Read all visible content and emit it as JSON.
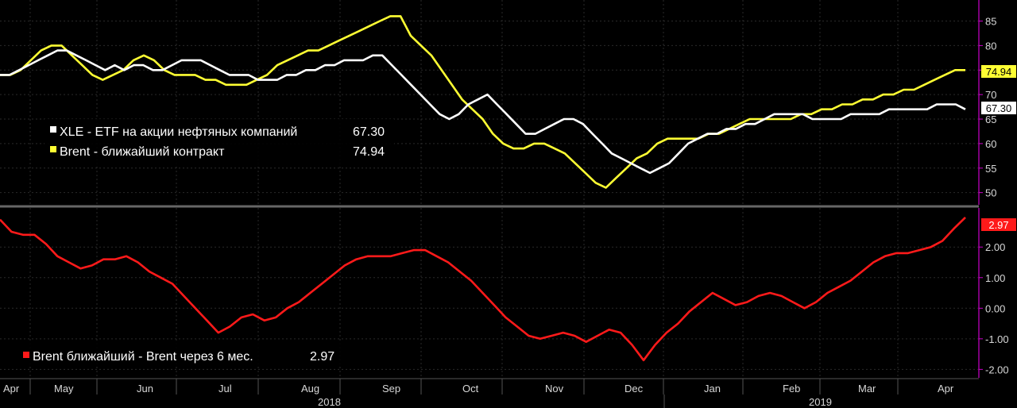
{
  "chart_data": [
    {
      "type": "line",
      "panel": "top",
      "x_labels": [
        "Apr",
        "May",
        "Jun",
        "Jul",
        "Aug",
        "Sep",
        "Oct",
        "Nov",
        "Dec",
        "Jan",
        "Feb",
        "Mar",
        "Apr"
      ],
      "years": [
        "2018",
        "2019"
      ],
      "yticks": [
        50,
        55,
        60,
        65,
        70,
        75,
        80,
        85
      ],
      "ylim": [
        48,
        88
      ],
      "grid": true,
      "legend_position": "left",
      "series": [
        {
          "name": "XLE - ETF на акции нефтяных компаний",
          "last_value": "67.30",
          "color": "#ffffff",
          "values": [
            74,
            74,
            75,
            76,
            77,
            78,
            79,
            79,
            78,
            77,
            76,
            75,
            76,
            75,
            76,
            76,
            75,
            75,
            76,
            77,
            77,
            77,
            76,
            75,
            74,
            74,
            74,
            73,
            73,
            73,
            74,
            74,
            75,
            75,
            76,
            76,
            77,
            77,
            77,
            78,
            78,
            76,
            74,
            72,
            70,
            68,
            66,
            65,
            66,
            68,
            69,
            70,
            68,
            66,
            64,
            62,
            62,
            63,
            64,
            65,
            65,
            64,
            62,
            60,
            58,
            57,
            56,
            55,
            54,
            55,
            56,
            58,
            60,
            61,
            62,
            62,
            63,
            63,
            64,
            64,
            65,
            66,
            66,
            66,
            66,
            65,
            65,
            65,
            65,
            66,
            66,
            66,
            66,
            67,
            67,
            67,
            67,
            67,
            68,
            68,
            68,
            67
          ]
        },
        {
          "name": "Brent - ближайший контракт",
          "last_value": "74.94",
          "color": "#ffff33",
          "values": [
            74,
            74,
            75,
            77,
            79,
            80,
            80,
            78,
            76,
            74,
            73,
            74,
            75,
            77,
            78,
            77,
            75,
            74,
            74,
            74,
            73,
            73,
            72,
            72,
            72,
            73,
            74,
            76,
            77,
            78,
            79,
            79,
            80,
            81,
            82,
            83,
            84,
            85,
            86,
            86,
            82,
            80,
            78,
            75,
            72,
            69,
            67,
            65,
            62,
            60,
            59,
            59,
            60,
            60,
            59,
            58,
            56,
            54,
            52,
            51,
            53,
            55,
            57,
            58,
            60,
            61,
            61,
            61,
            61,
            62,
            62,
            63,
            64,
            65,
            65,
            65,
            65,
            65,
            66,
            66,
            67,
            67,
            68,
            68,
            69,
            69,
            70,
            70,
            71,
            71,
            72,
            73,
            74,
            75,
            75
          ]
        }
      ]
    },
    {
      "type": "line",
      "panel": "bottom",
      "x_labels": [
        "Apr",
        "May",
        "Jun",
        "Jul",
        "Aug",
        "Sep",
        "Oct",
        "Nov",
        "Dec",
        "Jan",
        "Feb",
        "Mar",
        "Apr"
      ],
      "years": [
        "2018",
        "2019"
      ],
      "yticks": [
        -2.0,
        -1.0,
        0.0,
        1.0,
        2.0
      ],
      "ytick_labels": [
        "-2.00",
        "-1.00",
        "0.00",
        "1.00",
        "2.00"
      ],
      "ylim": [
        -2.25,
        3.2
      ],
      "grid": true,
      "legend_position": "bottom-left",
      "series": [
        {
          "name": "Brent ближайший - Brent через 6 мес.",
          "last_value": "2.97",
          "color": "#ff1a1a",
          "values": [
            2.9,
            2.5,
            2.4,
            2.4,
            2.1,
            1.7,
            1.5,
            1.3,
            1.4,
            1.6,
            1.6,
            1.7,
            1.5,
            1.2,
            1.0,
            0.8,
            0.4,
            0.0,
            -0.4,
            -0.8,
            -0.6,
            -0.3,
            -0.2,
            -0.4,
            -0.3,
            0.0,
            0.2,
            0.5,
            0.8,
            1.1,
            1.4,
            1.6,
            1.7,
            1.7,
            1.7,
            1.8,
            1.9,
            1.9,
            1.7,
            1.5,
            1.2,
            0.9,
            0.5,
            0.1,
            -0.3,
            -0.6,
            -0.9,
            -1.0,
            -0.9,
            -0.8,
            -0.9,
            -1.1,
            -0.9,
            -0.7,
            -0.8,
            -1.2,
            -1.7,
            -1.2,
            -0.8,
            -0.5,
            -0.1,
            0.2,
            0.5,
            0.3,
            0.1,
            0.2,
            0.4,
            0.5,
            0.4,
            0.2,
            0.0,
            0.2,
            0.5,
            0.7,
            0.9,
            1.2,
            1.5,
            1.7,
            1.8,
            1.8,
            1.9,
            2.0,
            2.2,
            2.6,
            2.97
          ]
        }
      ]
    }
  ],
  "legend": {
    "top": [
      {
        "label": "XLE - ETF на акции нефтяных компаний",
        "value": "67.30"
      },
      {
        "label": "Brent - ближайший контракт",
        "value": "74.94"
      }
    ],
    "bottom": [
      {
        "label": "Brent ближайший - Brent через 6 мес.",
        "value": "2.97"
      }
    ]
  },
  "badges": {
    "brent": "74.94",
    "xle": "67.30",
    "spread": "2.97"
  },
  "colors": {
    "background": "#000000",
    "grid": "#2a2a2a",
    "panel_divider": "#666666",
    "xle": "#ffffff",
    "brent": "#ffff33",
    "spread": "#ff1a1a",
    "accent": "#cc00cc"
  }
}
